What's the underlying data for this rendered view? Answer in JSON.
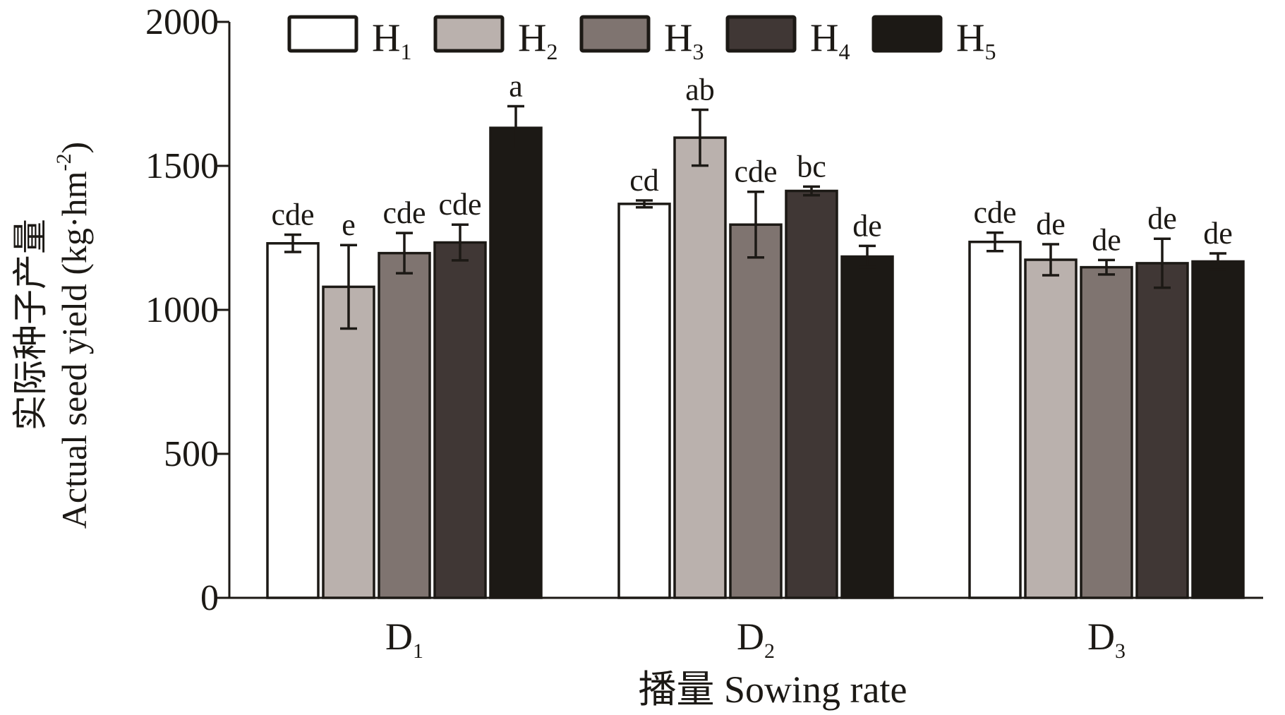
{
  "chart_data": {
    "type": "bar",
    "xlabel": "播量 Sowing rate",
    "ylabel_cn": "实际种子产量",
    "ylabel": "Actual seed yield (kg·hm",
    "ylabel_sup": "-2",
    "ylabel_close": ")",
    "ylim": [
      0,
      2000
    ],
    "yticks": [
      "0",
      "500",
      "1000",
      "1500",
      "2000"
    ],
    "categories": [
      {
        "main": "D",
        "sub": "1"
      },
      {
        "main": "D",
        "sub": "2"
      },
      {
        "main": "D",
        "sub": "3"
      }
    ],
    "legend_position": "top",
    "grid": false,
    "series": [
      {
        "name": "H",
        "sub": "1",
        "color": "#ffffff",
        "values": [
          1231,
          1368,
          1236
        ],
        "errors": [
          30,
          12,
          32
        ],
        "letters": [
          "cde",
          "cd",
          "cde"
        ]
      },
      {
        "name": "H",
        "sub": "2",
        "color": "#bab1ad",
        "values": [
          1080,
          1598,
          1174
        ],
        "errors": [
          145,
          97,
          54
        ],
        "letters": [
          "e",
          "ab",
          "de"
        ]
      },
      {
        "name": "H",
        "sub": "3",
        "color": "#7f7470",
        "values": [
          1197,
          1296,
          1148
        ],
        "errors": [
          70,
          114,
          25
        ],
        "letters": [
          "cde",
          "cde",
          "de"
        ]
      },
      {
        "name": "H",
        "sub": "4",
        "color": "#403735",
        "values": [
          1234,
          1413,
          1162
        ],
        "errors": [
          62,
          15,
          85
        ],
        "letters": [
          "cde",
          "bc",
          "de"
        ]
      },
      {
        "name": "H",
        "sub": "5",
        "color": "#1c1915",
        "values": [
          1632,
          1185,
          1168
        ],
        "errors": [
          75,
          37,
          28
        ],
        "letters": [
          "a",
          "de",
          "de"
        ]
      }
    ]
  }
}
